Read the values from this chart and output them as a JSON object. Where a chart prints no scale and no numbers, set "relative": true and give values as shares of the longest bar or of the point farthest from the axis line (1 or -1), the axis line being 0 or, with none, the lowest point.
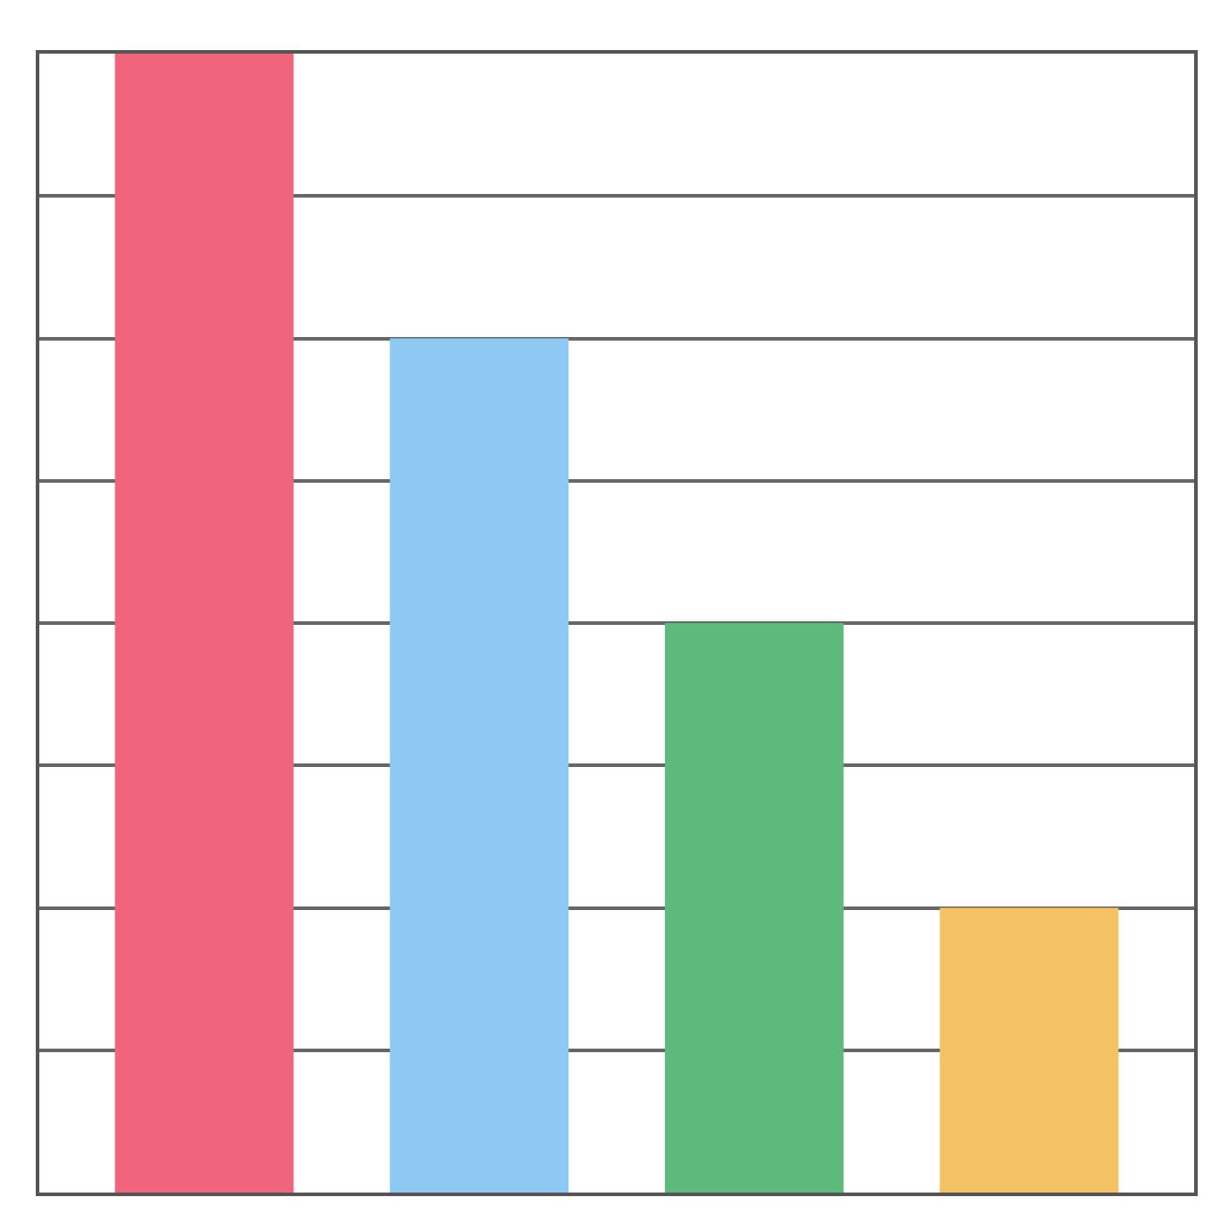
{
  "chart_data": {
    "type": "bar",
    "relative": true,
    "categories": [
      null,
      null,
      null,
      null
    ],
    "values": [
      1,
      0.75,
      0.5,
      0.25
    ],
    "colors": [
      "#f0647c",
      "#8ec9f3",
      "#5db97c",
      "#f4c163"
    ],
    "grid": "y"
  }
}
